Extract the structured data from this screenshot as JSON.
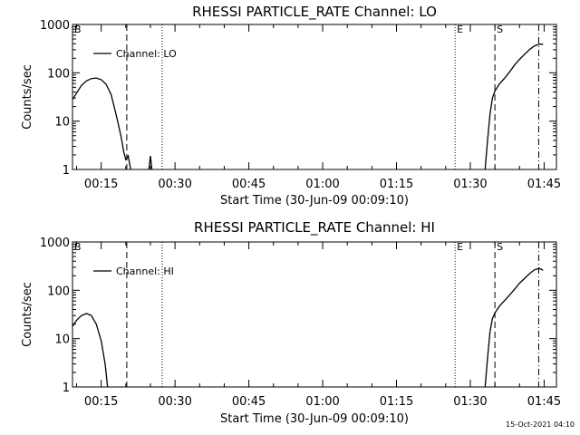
{
  "footer": {
    "timestamp": "15-Oct-2021 04:10"
  },
  "chart_data": [
    {
      "type": "line",
      "title": "RHESSI PARTICLE_RATE Channel: LO",
      "xlabel": "Start Time (30-Jun-09 00:09:10)",
      "ylabel": "Counts/sec",
      "yscale": "log",
      "ylim": [
        1,
        1000
      ],
      "xlim_minutes": [
        9.17,
        107.5
      ],
      "xticks": [
        "00:15",
        "00:30",
        "00:45",
        "01:00",
        "01:15",
        "01:30",
        "01:45"
      ],
      "xtick_minutes": [
        15,
        30,
        45,
        60,
        75,
        90,
        105
      ],
      "yticks": [
        "1",
        "10",
        "100",
        "1000"
      ],
      "ytick_values": [
        1,
        10,
        100,
        1000
      ],
      "legend": {
        "label": "Channel: LO",
        "position": "top-left"
      },
      "event_lines": [
        {
          "label": "B",
          "minute": 9.17,
          "style": "dashed"
        },
        {
          "label": "",
          "minute": 20.2,
          "style": "dashed"
        },
        {
          "label": "",
          "minute": 27.4,
          "style": "dotted"
        },
        {
          "label": "E",
          "minute": 86.9,
          "style": "dotted"
        },
        {
          "label": "S",
          "minute": 95.0,
          "style": "dashed"
        },
        {
          "label": "",
          "minute": 103.9,
          "style": "dashdot"
        }
      ],
      "series": [
        {
          "segments": [
            [
              [
                9.17,
                28
              ],
              [
                10.0,
                38
              ],
              [
                11.0,
                55
              ],
              [
                12.0,
                68
              ],
              [
                13.0,
                76
              ],
              [
                14.0,
                78
              ],
              [
                15.0,
                72
              ],
              [
                16.0,
                58
              ],
              [
                17.0,
                36
              ],
              [
                18.0,
                14
              ],
              [
                19.0,
                5
              ],
              [
                19.6,
                2.3
              ],
              [
                20.0,
                1.6
              ],
              [
                20.5,
                1.9
              ],
              [
                21.0,
                1.0
              ]
            ],
            [
              [
                24.7,
                1.0
              ],
              [
                25.0,
                1.9
              ],
              [
                25.3,
                1.0
              ]
            ],
            [
              [
                93.0,
                1.0
              ],
              [
                93.5,
                4
              ],
              [
                94.0,
                14
              ],
              [
                94.5,
                30
              ],
              [
                95.0,
                42
              ],
              [
                96.0,
                60
              ],
              [
                97.0,
                78
              ],
              [
                98.0,
                105
              ],
              [
                99.0,
                145
              ],
              [
                100.0,
                190
              ],
              [
                101.0,
                240
              ],
              [
                102.0,
                300
              ],
              [
                103.0,
                360
              ],
              [
                104.0,
                390
              ],
              [
                104.8,
                390
              ]
            ]
          ]
        }
      ]
    },
    {
      "type": "line",
      "title": "RHESSI PARTICLE_RATE Channel: HI",
      "xlabel": "Start Time (30-Jun-09 00:09:10)",
      "ylabel": "Counts/sec",
      "yscale": "log",
      "ylim": [
        1,
        1000
      ],
      "xlim_minutes": [
        9.17,
        107.5
      ],
      "xticks": [
        "00:15",
        "00:30",
        "00:45",
        "01:00",
        "01:15",
        "01:30",
        "01:45"
      ],
      "xtick_minutes": [
        15,
        30,
        45,
        60,
        75,
        90,
        105
      ],
      "yticks": [
        "1",
        "10",
        "100",
        "1000"
      ],
      "ytick_values": [
        1,
        10,
        100,
        1000
      ],
      "legend": {
        "label": "Channel: HI",
        "position": "top-left"
      },
      "event_lines": [
        {
          "label": "B",
          "minute": 9.17,
          "style": "dashed"
        },
        {
          "label": "",
          "minute": 20.2,
          "style": "dashed"
        },
        {
          "label": "",
          "minute": 27.4,
          "style": "dotted"
        },
        {
          "label": "E",
          "minute": 86.9,
          "style": "dotted"
        },
        {
          "label": "S",
          "minute": 95.0,
          "style": "dashed"
        },
        {
          "label": "",
          "minute": 103.9,
          "style": "dashdot"
        }
      ],
      "series": [
        {
          "segments": [
            [
              [
                9.17,
                18
              ],
              [
                10.0,
                24
              ],
              [
                11.0,
                30
              ],
              [
                12.0,
                33
              ],
              [
                13.0,
                30
              ],
              [
                14.0,
                20
              ],
              [
                15.0,
                9
              ],
              [
                15.8,
                3
              ],
              [
                16.3,
                1.0
              ]
            ],
            [
              [
                93.0,
                1.0
              ],
              [
                93.5,
                4
              ],
              [
                94.0,
                14
              ],
              [
                94.5,
                26
              ],
              [
                95.0,
                34
              ],
              [
                96.0,
                48
              ],
              [
                97.0,
                62
              ],
              [
                98.0,
                80
              ],
              [
                99.0,
                105
              ],
              [
                100.0,
                140
              ],
              [
                101.0,
                175
              ],
              [
                102.0,
                220
              ],
              [
                103.0,
                265
              ],
              [
                104.0,
                285
              ],
              [
                104.8,
                260
              ]
            ]
          ]
        }
      ]
    }
  ]
}
